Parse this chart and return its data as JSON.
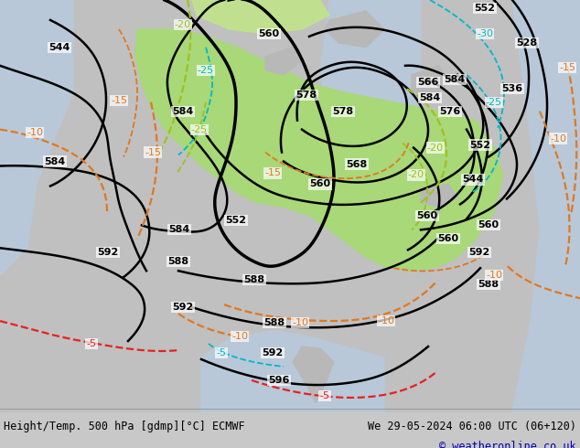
{
  "title_left": "Height/Temp. 500 hPa [gdmp][°C] ECMWF",
  "title_right": "We 29-05-2024 06:00 UTC (06+120)",
  "copyright": "© weatheronline.co.uk",
  "bg_color": "#c8c8c8",
  "bottom_bar_color": "#e0e0e0",
  "copyright_color": "#0000aa",
  "green_color": "#a8d878",
  "green_light": "#c0e090",
  "cyan_color": "#00b8c8",
  "ygreen_color": "#a0c020",
  "orange_color": "#e07820",
  "red_color": "#e82020",
  "figsize": [
    6.34,
    4.9
  ],
  "dpi": 100
}
